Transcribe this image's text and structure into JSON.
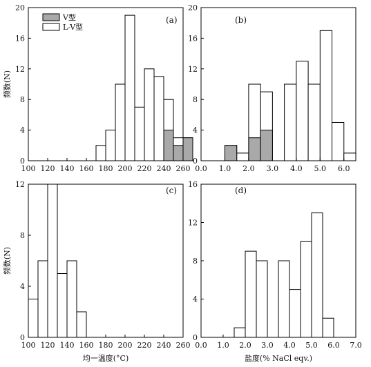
{
  "legend": {
    "v_label": "V型",
    "lv_label": "L-V型",
    "v_color": "#a9a9a9",
    "lv_color": "#ffffff"
  },
  "chart_data": [
    {
      "type": "bar",
      "panel": "(a)",
      "ylabel": "频数(N)",
      "xlabel": "",
      "xlim": [
        100,
        260
      ],
      "ylim": [
        0,
        20
      ],
      "xticks": [
        "100",
        "120",
        "140",
        "160",
        "180",
        "200",
        "220",
        "240",
        "260"
      ],
      "yticks": [
        "0",
        "4",
        "8",
        "12",
        "16",
        "20"
      ],
      "bin_width": 10,
      "bins_left": [
        170,
        180,
        190,
        200,
        210,
        220,
        230,
        240,
        250,
        260
      ],
      "series": [
        {
          "name": "L-V型",
          "values": [
            2,
            4,
            10,
            19,
            7,
            12,
            11,
            8,
            3,
            3
          ]
        },
        {
          "name": "V型",
          "values": [
            0,
            0,
            0,
            0,
            0,
            0,
            0,
            4,
            2,
            3
          ]
        }
      ],
      "legend": "top-left"
    },
    {
      "type": "bar",
      "panel": "(b)",
      "ylabel": "",
      "xlabel": "",
      "xlim": [
        0,
        6.5
      ],
      "ylim": [
        0,
        20
      ],
      "xticks": [
        "0.0",
        "1.0",
        "2.0",
        "3.0",
        "4.0",
        "5.0",
        "6.0"
      ],
      "yticks": [
        "0",
        "4",
        "8",
        "12",
        "16",
        "20"
      ],
      "bin_width": 0.5,
      "bins_left": [
        1.0,
        1.5,
        2.0,
        2.5,
        3.5,
        4.0,
        4.5,
        5.0,
        5.5,
        6.0
      ],
      "series": [
        {
          "name": "L-V型",
          "values": [
            2,
            1,
            10,
            9,
            10,
            13,
            10,
            17,
            5,
            1
          ]
        },
        {
          "name": "V型",
          "values": [
            2,
            0,
            3,
            4,
            0,
            0,
            0,
            0,
            0,
            0
          ]
        }
      ]
    },
    {
      "type": "bar",
      "panel": "(c)",
      "ylabel": "频数(N)",
      "xlabel": "均一温度(°C)",
      "xlim": [
        100,
        260
      ],
      "ylim": [
        0,
        12
      ],
      "xticks": [
        "100",
        "120",
        "140",
        "160",
        "180",
        "200",
        "220",
        "240",
        "260"
      ],
      "yticks": [
        "0",
        "4",
        "8",
        "12"
      ],
      "bin_width": 10,
      "bins_left": [
        100,
        110,
        120,
        130,
        140,
        150
      ],
      "series": [
        {
          "name": "L-V型",
          "values": [
            3,
            6,
            12,
            5,
            6,
            2
          ]
        }
      ]
    },
    {
      "type": "bar",
      "panel": "(d)",
      "ylabel": "",
      "xlabel": "盐度(% NaCl eqv.)",
      "xlim": [
        0,
        7.0
      ],
      "ylim": [
        0,
        16
      ],
      "xticks": [
        "0.0",
        "1.0",
        "2.0",
        "3.0",
        "4.0",
        "5.0",
        "6.0",
        "7.0"
      ],
      "yticks": [
        "0",
        "4",
        "8",
        "12",
        "16"
      ],
      "bin_width": 0.5,
      "bins_left": [
        1.5,
        2.0,
        2.5,
        3.5,
        4.0,
        4.5,
        5.0,
        5.5
      ],
      "series": [
        {
          "name": "L-V型",
          "values": [
            1,
            9,
            8,
            8,
            5,
            10,
            13,
            2
          ]
        }
      ]
    }
  ]
}
